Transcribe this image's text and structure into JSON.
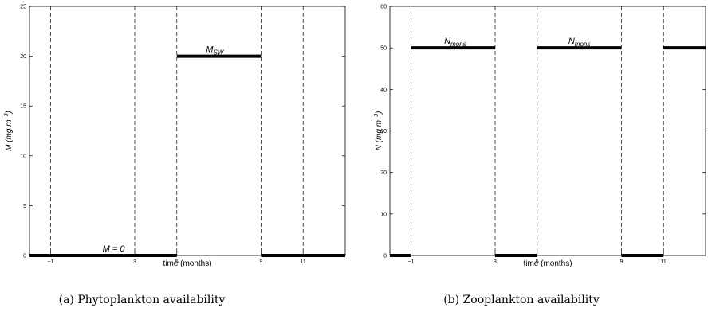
{
  "chart_data": [
    {
      "type": "line",
      "caption": "(a) Phytoplankton availability",
      "xlabel": "time (months)",
      "ylabel_main": "M",
      "ylabel_unit": "mg m",
      "ylabel_exp": "−3",
      "ylim": [
        0,
        25
      ],
      "yticks": [
        0,
        5,
        10,
        15,
        20,
        25
      ],
      "xlim": [
        -2,
        13
      ],
      "xticks": [
        -1,
        3,
        5,
        9,
        11
      ],
      "xtick_labels": [
        "−1",
        "3",
        "5",
        "9",
        "11"
      ],
      "vlines": [
        -1,
        3,
        5,
        9,
        11
      ],
      "segments": [
        {
          "x": [
            -2,
            5
          ],
          "y": 0
        },
        {
          "x": [
            5,
            9
          ],
          "y": 20
        },
        {
          "x": [
            9,
            13
          ],
          "y": 0
        }
      ],
      "annotations": [
        {
          "main": "M = 0",
          "sub": "",
          "x": 2,
          "y": 0
        },
        {
          "main": "M",
          "sub": "SW",
          "x": 6.8,
          "y": 20
        }
      ]
    },
    {
      "type": "line",
      "caption": "(b) Zooplankton availability",
      "xlabel": "time (months)",
      "ylabel_main": "N",
      "ylabel_unit": "mg m",
      "ylabel_exp": "−3",
      "ylim": [
        0,
        60
      ],
      "yticks": [
        0,
        10,
        20,
        30,
        40,
        50,
        60
      ],
      "xlim": [
        -2,
        13
      ],
      "xticks": [
        -1,
        3,
        5,
        9,
        11
      ],
      "xtick_labels": [
        "−1",
        "3",
        "5",
        "9",
        "11"
      ],
      "vlines": [
        -1,
        3,
        5,
        9,
        11
      ],
      "segments": [
        {
          "x": [
            -2,
            -1
          ],
          "y": 0
        },
        {
          "x": [
            -1,
            3
          ],
          "y": 50
        },
        {
          "x": [
            3,
            5
          ],
          "y": 0
        },
        {
          "x": [
            5,
            9
          ],
          "y": 50
        },
        {
          "x": [
            9,
            11
          ],
          "y": 0
        },
        {
          "x": [
            11,
            13
          ],
          "y": 50
        }
      ],
      "annotations": [
        {
          "main": "N",
          "sub": "mons",
          "x": 1.1,
          "y": 50
        },
        {
          "main": "N",
          "sub": "mons",
          "x": 7,
          "y": 50
        }
      ]
    }
  ]
}
